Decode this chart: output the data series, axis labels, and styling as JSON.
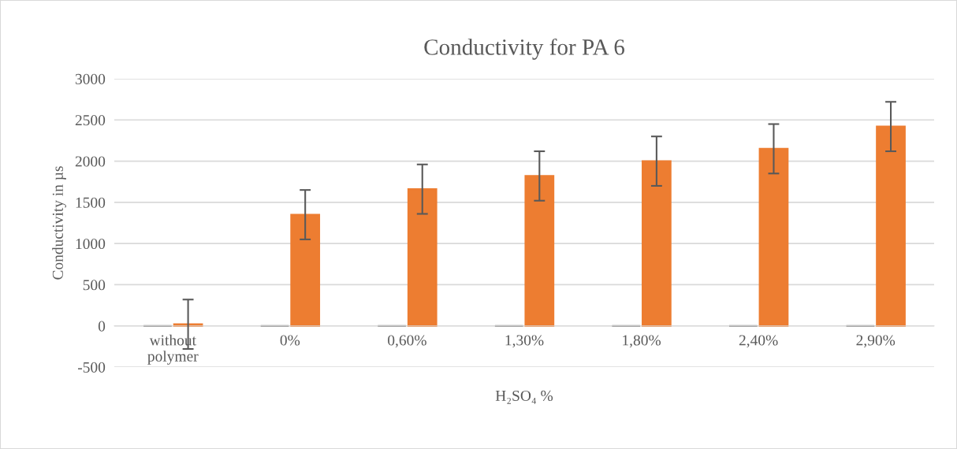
{
  "chart_data": {
    "type": "bar",
    "title": "Conductivity for PA 6",
    "xlabel": "H₂SO₄ %",
    "ylabel": "Conductivity in µs",
    "categories": [
      "without\npolymer",
      "0%",
      "0,60%",
      "1,30%",
      "1,80%",
      "2,40%",
      "2,90%"
    ],
    "series": [
      {
        "color": "#7f7f7f",
        "values": [
          0,
          0,
          0,
          0,
          0,
          0,
          0
        ]
      },
      {
        "color": "#ed7d31",
        "values": [
          20,
          1350,
          1660,
          1820,
          2000,
          2150,
          2420
        ],
        "errors": [
          300,
          300,
          300,
          300,
          300,
          300,
          300
        ]
      }
    ],
    "ylim": [
      -500,
      3000
    ],
    "yticks": [
      -500,
      0,
      500,
      1000,
      1500,
      2000,
      2500,
      3000
    ],
    "grid": "y",
    "legend": false
  }
}
